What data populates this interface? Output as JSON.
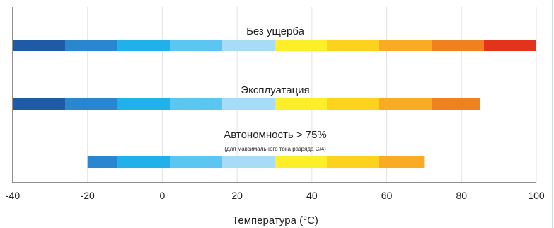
{
  "chart_data": {
    "type": "bar",
    "xlabel": "Температура (°C)",
    "xlim": [
      -40,
      100
    ],
    "xticks": [
      -40,
      -20,
      0,
      20,
      40,
      60,
      80,
      100
    ],
    "grid": true,
    "segment_boundaries": [
      -40,
      -26,
      -12,
      2,
      16,
      30,
      44,
      58,
      72,
      86,
      100
    ],
    "segment_colors": [
      "#1f5aa6",
      "#2a86cf",
      "#1fb1e8",
      "#5cc6f2",
      "#a6dcf7",
      "#fdee2a",
      "#fdd21c",
      "#fbaa26",
      "#f0811f",
      "#e3331c"
    ],
    "series": [
      {
        "name": "Без ущерба",
        "note": "",
        "range": [
          -40,
          100
        ]
      },
      {
        "name": "Эксплуатация",
        "note": "",
        "range": [
          -40,
          85
        ]
      },
      {
        "name": "Автономность > 75%",
        "note": "(для максимального тока разряда С/4)",
        "range": [
          -20,
          70
        ]
      }
    ]
  }
}
